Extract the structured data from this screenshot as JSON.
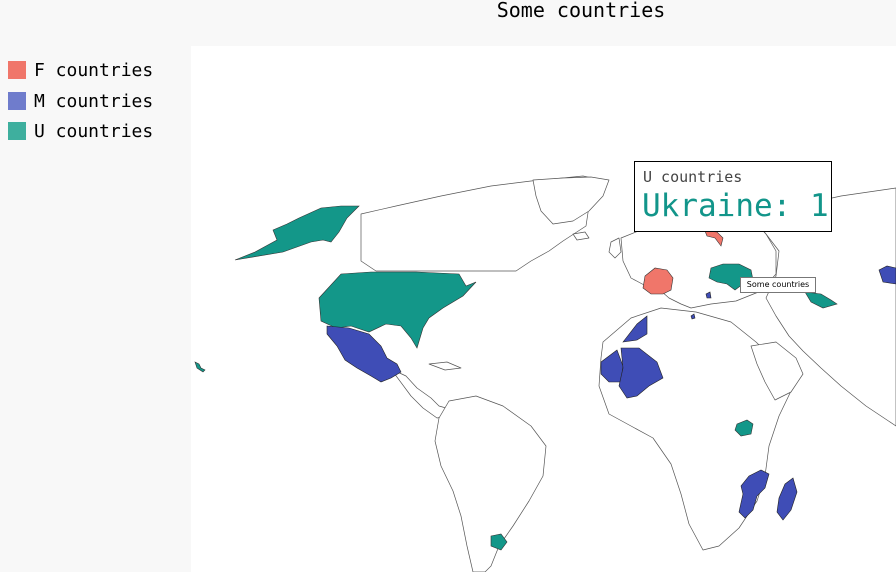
{
  "chart": {
    "title": "Some countries"
  },
  "legend": {
    "items": [
      {
        "label": "F countries",
        "color": "#f0766a"
      },
      {
        "label": "M countries",
        "color": "#6f7ccc"
      },
      {
        "label": "U countries",
        "color": "#3eaf9e"
      }
    ]
  },
  "tooltip": {
    "series": "U countries",
    "value_text": "Ukraine: 1",
    "value_color": "#12958a"
  },
  "hover_label": "Some countries",
  "chart_data": {
    "type": "choropleth",
    "title": "Some countries",
    "series": [
      {
        "name": "F countries",
        "color": "#f0766a",
        "countries": [
          "France",
          "Finland"
        ]
      },
      {
        "name": "M countries",
        "color": "#3f4db6",
        "countries": [
          "Mexico",
          "Morocco",
          "Mauritania",
          "Mali",
          "Mozambique",
          "Madagascar",
          "Mongolia",
          "Moldova",
          "Malta",
          "Montenegro"
        ]
      },
      {
        "name": "U countries",
        "color": "#139789",
        "countries": [
          "United States",
          "Ukraine",
          "Uzbekistan",
          "Uganda",
          "Uruguay"
        ]
      }
    ],
    "highlight": {
      "series": "U countries",
      "country": "Ukraine",
      "value": 1
    }
  }
}
